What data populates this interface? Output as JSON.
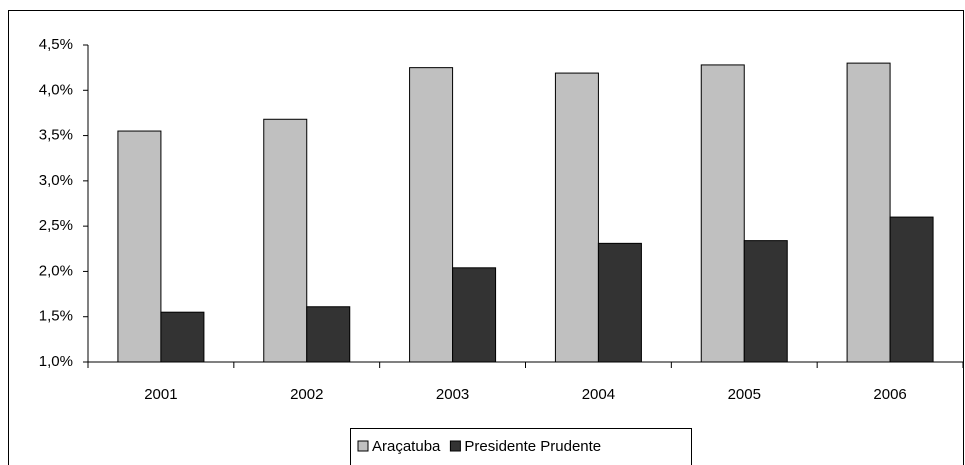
{
  "chart_data": {
    "type": "bar",
    "categories": [
      "2001",
      "2002",
      "2003",
      "2004",
      "2005",
      "2006"
    ],
    "series": [
      {
        "name": "Araçatuba",
        "color": "#c0c0c0",
        "values": [
          3.55,
          3.68,
          4.25,
          4.19,
          4.28,
          4.3
        ]
      },
      {
        "name": "Presidente Prudente",
        "color": "#333333",
        "values": [
          1.55,
          1.61,
          2.04,
          2.31,
          2.34,
          2.6
        ]
      }
    ],
    "ylim": [
      1.0,
      4.5
    ],
    "yticks": [
      {
        "value": 1.0,
        "label": "1,0%"
      },
      {
        "value": 1.5,
        "label": "1,5%"
      },
      {
        "value": 2.0,
        "label": "2,0%"
      },
      {
        "value": 2.5,
        "label": "2,5%"
      },
      {
        "value": 3.0,
        "label": "3,0%"
      },
      {
        "value": 3.5,
        "label": "3,5%"
      },
      {
        "value": 4.0,
        "label": "4,0%"
      },
      {
        "value": 4.5,
        "label": "4,5%"
      }
    ],
    "grid": false,
    "legend": "bottom"
  }
}
